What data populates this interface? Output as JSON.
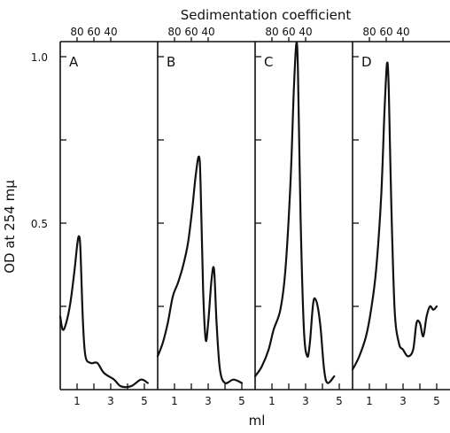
{
  "chart_data": {
    "type": "line",
    "top_axis_title": "Sedimentation coefficient",
    "ylabel": "OD at 254 mμ",
    "xlabel": "ml",
    "ylim": [
      0,
      1.3
    ],
    "y_ticks": [
      {
        "value": 0.5,
        "label": "0.5"
      },
      {
        "value": 1.0,
        "label": "1.0"
      }
    ],
    "y_minor_ticks": [
      0.25,
      0.75,
      1.25
    ],
    "x_range": [
      0,
      5.3
    ],
    "x_ticks": [
      {
        "value": 1,
        "label": "1"
      },
      {
        "value": 3,
        "label": "3"
      },
      {
        "value": 5,
        "label": "5"
      }
    ],
    "panels": [
      {
        "label": "A",
        "top_ticks": [
          "80",
          "60",
          "40"
        ],
        "series": [
          {
            "points": [
              [
                0,
                0.22
              ],
              [
                0.15,
                0.18
              ],
              [
                0.35,
                0.2
              ],
              [
                0.6,
                0.26
              ],
              [
                0.85,
                0.36
              ],
              [
                1.02,
                0.44
              ],
              [
                1.12,
                0.46
              ],
              [
                1.2,
                0.42
              ],
              [
                1.35,
                0.2
              ],
              [
                1.5,
                0.1
              ],
              [
                1.8,
                0.08
              ],
              [
                2.2,
                0.08
              ],
              [
                2.6,
                0.05
              ],
              [
                3.2,
                0.03
              ],
              [
                3.6,
                0.01
              ],
              [
                4.2,
                0.01
              ],
              [
                4.8,
                0.03
              ],
              [
                5.2,
                0.02
              ]
            ]
          }
        ]
      },
      {
        "label": "B",
        "top_ticks": [
          "80",
          "60",
          "40"
        ],
        "series": [
          {
            "points": [
              [
                0,
                0.1
              ],
              [
                0.3,
                0.14
              ],
              [
                0.6,
                0.2
              ],
              [
                0.9,
                0.28
              ],
              [
                1.2,
                0.32
              ],
              [
                1.5,
                0.37
              ],
              [
                1.8,
                0.44
              ],
              [
                2.05,
                0.54
              ],
              [
                2.25,
                0.64
              ],
              [
                2.45,
                0.7
              ],
              [
                2.55,
                0.62
              ],
              [
                2.7,
                0.3
              ],
              [
                2.85,
                0.15
              ],
              [
                3.0,
                0.2
              ],
              [
                3.2,
                0.33
              ],
              [
                3.35,
                0.36
              ],
              [
                3.5,
                0.2
              ],
              [
                3.7,
                0.06
              ],
              [
                4.0,
                0.02
              ],
              [
                4.5,
                0.03
              ],
              [
                5.0,
                0.02
              ]
            ]
          }
        ]
      },
      {
        "label": "C",
        "top_ticks": [
          "80",
          "60",
          "40"
        ],
        "series": [
          {
            "points": [
              [
                0,
                0.04
              ],
              [
                0.4,
                0.07
              ],
              [
                0.8,
                0.12
              ],
              [
                1.1,
                0.18
              ],
              [
                1.5,
                0.24
              ],
              [
                1.8,
                0.36
              ],
              [
                2.1,
                0.62
              ],
              [
                2.3,
                0.9
              ],
              [
                2.45,
                1.04
              ],
              [
                2.55,
                0.95
              ],
              [
                2.7,
                0.52
              ],
              [
                2.9,
                0.18
              ],
              [
                3.1,
                0.1
              ],
              [
                3.25,
                0.14
              ],
              [
                3.45,
                0.26
              ],
              [
                3.6,
                0.27
              ],
              [
                3.75,
                0.24
              ],
              [
                3.9,
                0.18
              ],
              [
                4.1,
                0.06
              ],
              [
                4.3,
                0.02
              ],
              [
                4.7,
                0.04
              ]
            ]
          }
        ]
      },
      {
        "label": "D",
        "top_ticks": [
          "80",
          "60",
          "40"
        ],
        "series": [
          {
            "points": [
              [
                0,
                0.06
              ],
              [
                0.4,
                0.1
              ],
              [
                0.8,
                0.16
              ],
              [
                1.1,
                0.24
              ],
              [
                1.4,
                0.36
              ],
              [
                1.7,
                0.58
              ],
              [
                1.9,
                0.84
              ],
              [
                2.05,
                0.98
              ],
              [
                2.15,
                0.9
              ],
              [
                2.3,
                0.56
              ],
              [
                2.5,
                0.24
              ],
              [
                2.75,
                0.14
              ],
              [
                3.0,
                0.12
              ],
              [
                3.3,
                0.1
              ],
              [
                3.6,
                0.12
              ],
              [
                3.8,
                0.2
              ],
              [
                4.0,
                0.2
              ],
              [
                4.2,
                0.16
              ],
              [
                4.4,
                0.22
              ],
              [
                4.6,
                0.25
              ],
              [
                4.8,
                0.24
              ],
              [
                5.0,
                0.25
              ]
            ]
          }
        ]
      }
    ]
  }
}
